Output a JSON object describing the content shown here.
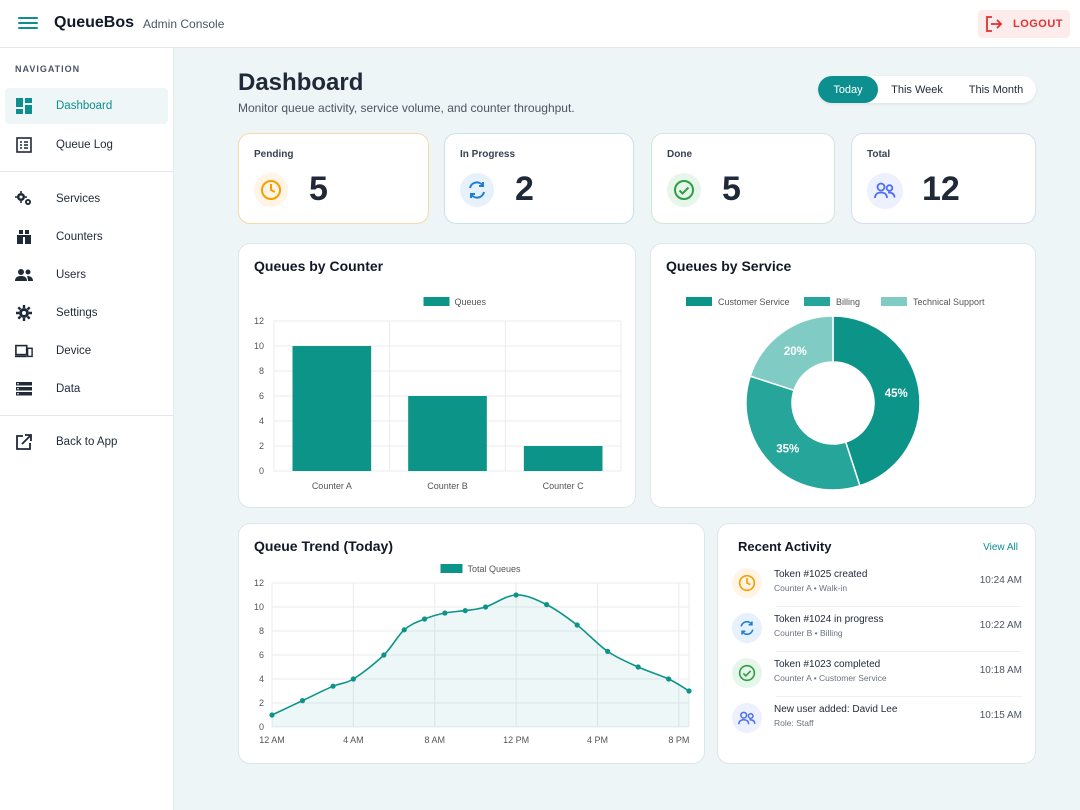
{
  "app": {
    "brand": "QueueBos",
    "subtitle": "Admin Console",
    "logout_label": "LOGOUT"
  },
  "sidebar": {
    "heading": "NAVIGATION",
    "items": [
      {
        "label": "Dashboard",
        "icon": "dashboard-icon",
        "active": true
      },
      {
        "label": "Queue Log",
        "icon": "list-icon"
      },
      {
        "label": "Services",
        "icon": "gears-icon"
      },
      {
        "label": "Counters",
        "icon": "counter-icon"
      },
      {
        "label": "Users",
        "icon": "users-icon"
      },
      {
        "label": "Settings",
        "icon": "gear-icon"
      },
      {
        "label": "Device",
        "icon": "devices-icon"
      },
      {
        "label": "Data",
        "icon": "storage-icon"
      },
      {
        "label": "Back to App",
        "icon": "external-link-icon"
      }
    ]
  },
  "header": {
    "title": "Dashboard",
    "subtitle": "Monitor queue activity, service volume, and counter throughput.",
    "ranges": [
      "Today",
      "This Week",
      "This Month"
    ],
    "selected_range": "Today"
  },
  "stats": [
    {
      "label": "Pending",
      "value": "5",
      "icon": "clock-icon",
      "color": "#f59f00"
    },
    {
      "label": "In Progress",
      "value": "2",
      "icon": "refresh-icon",
      "color": "#1c7ed6"
    },
    {
      "label": "Done",
      "value": "5",
      "icon": "check-circle-icon",
      "color": "#2f9e44"
    },
    {
      "label": "Total",
      "value": "12",
      "icon": "users-icon",
      "color": "#4c6ef5"
    }
  ],
  "counter_chart": {
    "title": "Queues by Counter",
    "chart_data": {
      "type": "bar",
      "categories": [
        "Counter A",
        "Counter B",
        "Counter C"
      ],
      "series": [
        {
          "name": "Queues",
          "values": [
            10,
            6,
            2
          ]
        }
      ],
      "ylim": [
        0,
        12
      ],
      "yticks": [
        "0",
        "2",
        "4",
        "6",
        "8",
        "10",
        "12"
      ],
      "color": "#0d9488",
      "grid": true,
      "legend": "top"
    }
  },
  "service_chart": {
    "title": "Queues by Service",
    "chart_data": {
      "type": "pie",
      "labels": [
        "Customer Service",
        "Billing",
        "Technical Support"
      ],
      "values": [
        45,
        35,
        20
      ],
      "value_labels": [
        "45%",
        "35%",
        "20%"
      ],
      "colors": [
        "#0d9488",
        "#26a69a",
        "#80cbc4"
      ],
      "legend": "top"
    }
  },
  "trend_chart": {
    "title": "Queue Trend (Today)",
    "chart_data": {
      "type": "area",
      "series": [
        {
          "name": "Total Queues",
          "values": [
            1,
            2.2,
            3.4,
            4,
            6,
            8.1,
            9,
            9.5,
            9.7,
            10,
            11,
            10.2,
            8.5,
            6.3,
            5,
            4,
            3
          ]
        }
      ],
      "x": [
        0,
        1.5,
        3,
        4,
        5.5,
        6.5,
        7.5,
        8.5,
        9.5,
        10.5,
        12,
        13.5,
        15,
        16.5,
        18,
        19.5,
        20.5
      ],
      "xticks": [
        "12 AM",
        "4 AM",
        "8 AM",
        "12 PM",
        "4 PM",
        "8 PM"
      ],
      "xtick_values": [
        0,
        4,
        8,
        12,
        16,
        20
      ],
      "xlim": [
        0,
        20.5
      ],
      "ylim": [
        0,
        12
      ],
      "yticks": [
        "0",
        "2",
        "4",
        "6",
        "8",
        "10",
        "12"
      ],
      "color": "#0d9488",
      "grid": true,
      "legend": "top"
    }
  },
  "activity": {
    "title": "Recent Activity",
    "view_all": "View All",
    "items": [
      {
        "title": "Token #1025 created",
        "sub": "Counter A • Walk-in",
        "time": "10:24 AM",
        "icon": "clock-icon",
        "color": "#f59f00",
        "bg": "#fff4e6"
      },
      {
        "title": "Token #1024 in progress",
        "sub": "Counter B • Billing",
        "time": "10:22 AM",
        "icon": "refresh-icon",
        "color": "#1c7ed6",
        "bg": "#e7f1fb"
      },
      {
        "title": "Token #1023 completed",
        "sub": "Counter A • Customer Service",
        "time": "10:18 AM",
        "icon": "check-circle-icon",
        "color": "#2f9e44",
        "bg": "#e6f6ea"
      },
      {
        "title": "New user added: David Lee",
        "sub": "Role: Staff",
        "time": "10:15 AM",
        "icon": "users-icon",
        "color": "#4c6ef5",
        "bg": "#edf0ff"
      }
    ]
  }
}
